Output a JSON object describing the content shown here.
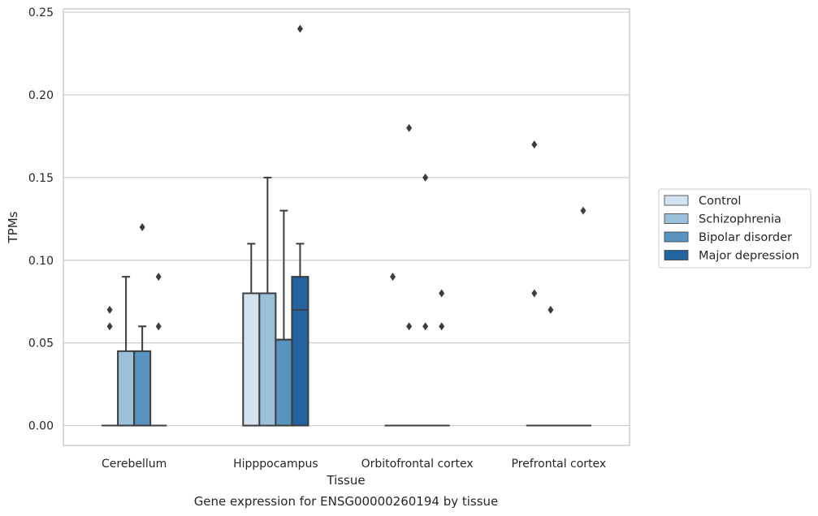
{
  "caption": "Gene expression for ENSG00000260194 by tissue",
  "chart_data": {
    "type": "box",
    "xlabel": "Tissue",
    "ylabel": "TPMs",
    "ylim": [
      -0.012,
      0.252
    ],
    "yticks": [
      "0.00",
      "0.05",
      "0.10",
      "0.15",
      "0.20",
      "0.25"
    ],
    "ytick_values": [
      0.0,
      0.05,
      0.1,
      0.15,
      0.2,
      0.25
    ],
    "grid": "horizontal",
    "legend_position": "right",
    "categories": [
      "Cerebellum",
      "Hipppocampus",
      "Orbitofrontal cortex",
      "Prefrontal cortex"
    ],
    "series": [
      {
        "name": "Control",
        "color": "#d2e2f0",
        "boxes": [
          {
            "q1": 0.0,
            "median": 0.0,
            "q3": 0.0,
            "whislo": 0.0,
            "whishi": 0.0,
            "fliers": [
              0.07,
              0.06
            ]
          },
          {
            "q1": 0.0,
            "median": 0.08,
            "q3": 0.08,
            "whislo": 0.0,
            "whishi": 0.11,
            "fliers": []
          },
          {
            "q1": 0.0,
            "median": 0.0,
            "q3": 0.0,
            "whislo": 0.0,
            "whishi": 0.0,
            "fliers": [
              0.09
            ]
          },
          {
            "q1": 0.0,
            "median": 0.0,
            "q3": 0.0,
            "whislo": 0.0,
            "whishi": 0.0,
            "fliers": [
              0.17,
              0.08
            ]
          }
        ]
      },
      {
        "name": "Schizophrenia",
        "color": "#9ac0da",
        "boxes": [
          {
            "q1": 0.0,
            "median": 0.0,
            "q3": 0.045,
            "whislo": 0.0,
            "whishi": 0.09,
            "fliers": []
          },
          {
            "q1": 0.0,
            "median": 0.08,
            "q3": 0.08,
            "whislo": 0.0,
            "whishi": 0.15,
            "fliers": []
          },
          {
            "q1": 0.0,
            "median": 0.0,
            "q3": 0.0,
            "whislo": 0.0,
            "whishi": 0.0,
            "fliers": [
              0.18,
              0.06
            ]
          },
          {
            "q1": 0.0,
            "median": 0.0,
            "q3": 0.0,
            "whislo": 0.0,
            "whishi": 0.0,
            "fliers": [
              0.07
            ]
          }
        ]
      },
      {
        "name": "Bipolar disorder",
        "color": "#5894be",
        "boxes": [
          {
            "q1": 0.0,
            "median": 0.0,
            "q3": 0.045,
            "whislo": 0.0,
            "whishi": 0.06,
            "fliers": [
              0.12
            ]
          },
          {
            "q1": 0.0,
            "median": 0.052,
            "q3": 0.052,
            "whislo": 0.0,
            "whishi": 0.13,
            "fliers": []
          },
          {
            "q1": 0.0,
            "median": 0.0,
            "q3": 0.0,
            "whislo": 0.0,
            "whishi": 0.0,
            "fliers": [
              0.15,
              0.06
            ]
          },
          {
            "q1": 0.0,
            "median": 0.0,
            "q3": 0.0,
            "whislo": 0.0,
            "whishi": 0.0,
            "fliers": []
          }
        ]
      },
      {
        "name": "Major depression",
        "color": "#2463a0",
        "boxes": [
          {
            "q1": 0.0,
            "median": 0.0,
            "q3": 0.0,
            "whislo": 0.0,
            "whishi": 0.0,
            "fliers": [
              0.09,
              0.06
            ]
          },
          {
            "q1": 0.0,
            "median": 0.07,
            "q3": 0.09,
            "whislo": 0.0,
            "whishi": 0.11,
            "fliers": [
              0.24
            ]
          },
          {
            "q1": 0.0,
            "median": 0.0,
            "q3": 0.0,
            "whislo": 0.0,
            "whishi": 0.0,
            "fliers": [
              0.08,
              0.06
            ]
          },
          {
            "q1": 0.0,
            "median": 0.0,
            "q3": 0.0,
            "whislo": 0.0,
            "whishi": 0.0,
            "fliers": [
              0.13
            ]
          }
        ]
      }
    ]
  }
}
